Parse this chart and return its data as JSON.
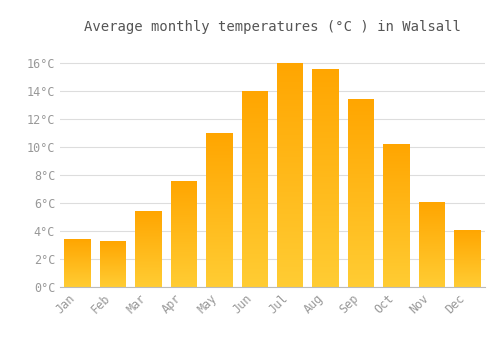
{
  "title": "Average monthly temperatures (°C ) in Walsall",
  "months": [
    "Jan",
    "Feb",
    "Mar",
    "Apr",
    "May",
    "Jun",
    "Jul",
    "Aug",
    "Sep",
    "Oct",
    "Nov",
    "Dec"
  ],
  "values": [
    3.4,
    3.3,
    5.4,
    7.6,
    11.0,
    14.0,
    16.0,
    15.6,
    13.4,
    10.2,
    6.1,
    4.1
  ],
  "bar_color_bottom": "#FFCC33",
  "bar_color_top": "#FFA500",
  "background_color": "#FFFFFF",
  "grid_color": "#DDDDDD",
  "yticks": [
    0,
    2,
    4,
    6,
    8,
    10,
    12,
    14,
    16
  ],
  "ytick_labels": [
    "0°C",
    "2°C",
    "4°C",
    "6°C",
    "8°C",
    "10°C",
    "12°C",
    "14°C",
    "16°C"
  ],
  "ylim": [
    0,
    17.5
  ],
  "title_fontsize": 10,
  "tick_fontsize": 8.5,
  "font_color": "#999999",
  "title_color": "#555555",
  "bar_width": 0.75
}
